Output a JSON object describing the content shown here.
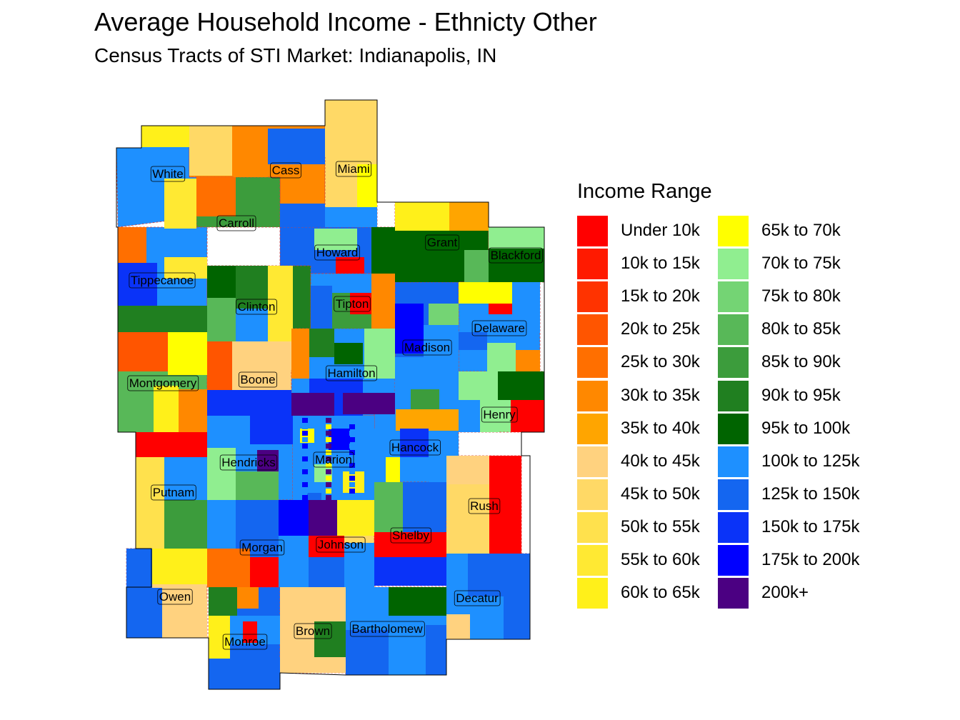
{
  "title": "Average Household Income - Ethnicty Other",
  "subtitle": "Census Tracts of STI Market: Indianapolis, IN",
  "legend": {
    "title": "Income Range",
    "items": [
      {
        "label": "Under 10k",
        "color": "#FF0000"
      },
      {
        "label": "10k to 15k",
        "color": "#FF1A00"
      },
      {
        "label": "15k to 20k",
        "color": "#FF3300"
      },
      {
        "label": "20k to 25k",
        "color": "#FF5500"
      },
      {
        "label": "25k to 30k",
        "color": "#FF6F00"
      },
      {
        "label": "30k to 35k",
        "color": "#FF8800"
      },
      {
        "label": "35k to 40k",
        "color": "#FFA500"
      },
      {
        "label": "40k to 45k",
        "color": "#FFD27F"
      },
      {
        "label": "45k to 50k",
        "color": "#FFD966"
      },
      {
        "label": "50k to 55k",
        "color": "#FFE14D"
      },
      {
        "label": "55k to 60k",
        "color": "#FFE933"
      },
      {
        "label": "60k to 65k",
        "color": "#FFF01A"
      },
      {
        "label": "65k to 70k",
        "color": "#FFFF00"
      },
      {
        "label": "70k to 75k",
        "color": "#90EE90"
      },
      {
        "label": "75k to 80k",
        "color": "#74D474"
      },
      {
        "label": "80k to 85k",
        "color": "#58B858"
      },
      {
        "label": "85k to 90k",
        "color": "#3C9C3C"
      },
      {
        "label": "90k to 95k",
        "color": "#207F20"
      },
      {
        "label": "95k to 100k",
        "color": "#006400"
      },
      {
        "label": "100k to 125k",
        "color": "#1E90FF"
      },
      {
        "label": "125k to 150k",
        "color": "#1466F0"
      },
      {
        "label": "150k to 175k",
        "color": "#0A33F8"
      },
      {
        "label": "175k to 200k",
        "color": "#0000FF"
      },
      {
        "label": "200k+",
        "color": "#4B0082"
      }
    ]
  },
  "counties": [
    {
      "name": "White",
      "color": "#1E90FF"
    },
    {
      "name": "Cass",
      "color": "#FF8800"
    },
    {
      "name": "Miami",
      "color": "#FFD966"
    },
    {
      "name": "Carroll",
      "color": "#3C9C3C"
    },
    {
      "name": "Howard",
      "color": "#1466F0"
    },
    {
      "name": "Grant",
      "color": "#006400"
    },
    {
      "name": "Blackford",
      "color": "#90EE90"
    },
    {
      "name": "Tippecanoe",
      "color": "#1E90FF"
    },
    {
      "name": "Clinton",
      "color": "#207F20"
    },
    {
      "name": "Tipton",
      "color": "#1E90FF"
    },
    {
      "name": "Delaware",
      "color": "#1E90FF"
    },
    {
      "name": "Madison",
      "color": "#1466F0"
    },
    {
      "name": "Montgomery",
      "color": "#58B858"
    },
    {
      "name": "Boone",
      "color": "#FFD27F"
    },
    {
      "name": "Hamilton",
      "color": "#1E90FF"
    },
    {
      "name": "Henry",
      "color": "#90EE90"
    },
    {
      "name": "Hancock",
      "color": "#1E90FF"
    },
    {
      "name": "Hendricks",
      "color": "#1E90FF"
    },
    {
      "name": "Marion",
      "color": "#1E90FF"
    },
    {
      "name": "Putnam",
      "color": "#FFD966"
    },
    {
      "name": "Rush",
      "color": "#FFE14D"
    },
    {
      "name": "Morgan",
      "color": "#1466F0"
    },
    {
      "name": "Johnson",
      "color": "#FFD966"
    },
    {
      "name": "Shelby",
      "color": "#1466F0"
    },
    {
      "name": "Owen",
      "color": "#FFD27F"
    },
    {
      "name": "Decatur",
      "color": "#1466F0"
    },
    {
      "name": "Brown",
      "color": "#FFD27F"
    },
    {
      "name": "Bartholomew",
      "color": "#1E90FF"
    },
    {
      "name": "Monroe",
      "color": "#1466F0"
    }
  ]
}
